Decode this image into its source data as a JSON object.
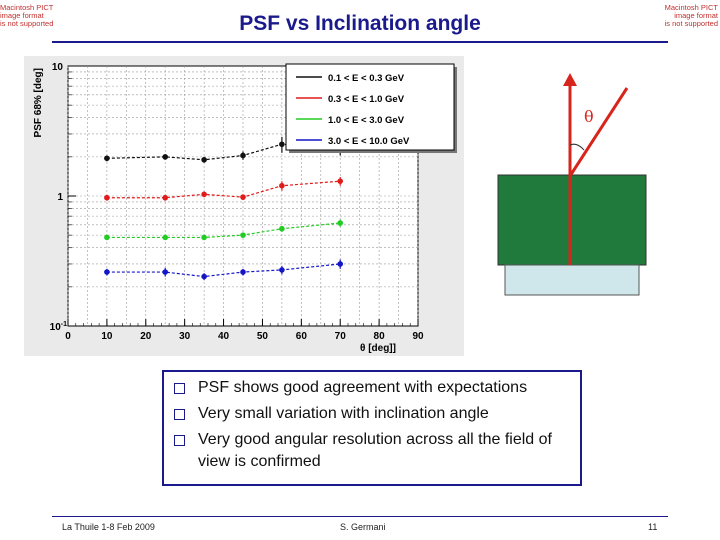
{
  "pict_placeholder": {
    "left": [
      "Macintosh PICT",
      "image format",
      "is not supported"
    ],
    "right": [
      "Macintosh PICT",
      "image format",
      "is not supported"
    ]
  },
  "slide": {
    "title": "PSF vs Inclination angle",
    "bullets": [
      "PSF shows good agreement with expectations",
      "Very small variation with inclination angle",
      "Very good angular resolution across all the field of view is confirmed"
    ]
  },
  "footer": {
    "left": "La Thuile 1-8 Feb 2009",
    "center": "S. Germani",
    "page": "11"
  },
  "diagram": {
    "theta_label": "θ",
    "colors": {
      "detector": "#1f7a3c",
      "base": "#cfe6ea",
      "arrow": "#d8251c"
    }
  },
  "chart_data": {
    "type": "scatter",
    "xlabel": "θ [deg]]",
    "ylabel": "PSF 68% [deg]",
    "xlim": [
      0,
      90
    ],
    "ylim": [
      0.1,
      10
    ],
    "yscale": "log",
    "xticks": [
      0,
      10,
      20,
      30,
      40,
      50,
      60,
      70,
      80,
      90
    ],
    "yticks": [
      {
        "value": 10,
        "label": "10"
      },
      {
        "value": 1,
        "label": "1"
      },
      {
        "value": 0.1,
        "label": "10",
        "exp": "-1"
      }
    ],
    "grid": true,
    "legend": "top-right",
    "x": [
      10,
      25,
      35,
      45,
      55,
      70
    ],
    "series": [
      {
        "name": "0.1 < E < 0.3 GeV",
        "color": "#111111",
        "style": "dashed",
        "values": [
          1.95,
          2.0,
          1.9,
          2.05,
          2.5,
          2.35
        ],
        "errors": [
          0.1,
          0.1,
          0.1,
          0.15,
          0.35,
          0.3
        ]
      },
      {
        "name": "0.3 < E < 1.0 GeV",
        "color": "#e11b1b",
        "style": "dashed",
        "values": [
          0.97,
          0.97,
          1.03,
          0.98,
          1.2,
          1.3
        ],
        "errors": [
          0.05,
          0.05,
          0.05,
          0.05,
          0.1,
          0.1
        ]
      },
      {
        "name": "1.0 < E < 3.0 GeV",
        "color": "#22cc22",
        "style": "dashed",
        "values": [
          0.48,
          0.48,
          0.48,
          0.5,
          0.56,
          0.62
        ],
        "errors": [
          0.02,
          0.02,
          0.02,
          0.02,
          0.03,
          0.04
        ]
      },
      {
        "name": "3.0 < E < 10.0 GeV",
        "color": "#1515c8",
        "style": "dashed",
        "values": [
          0.26,
          0.26,
          0.24,
          0.26,
          0.27,
          0.3
        ],
        "errors": [
          0.015,
          0.02,
          0.015,
          0.015,
          0.02,
          0.025
        ]
      }
    ]
  }
}
